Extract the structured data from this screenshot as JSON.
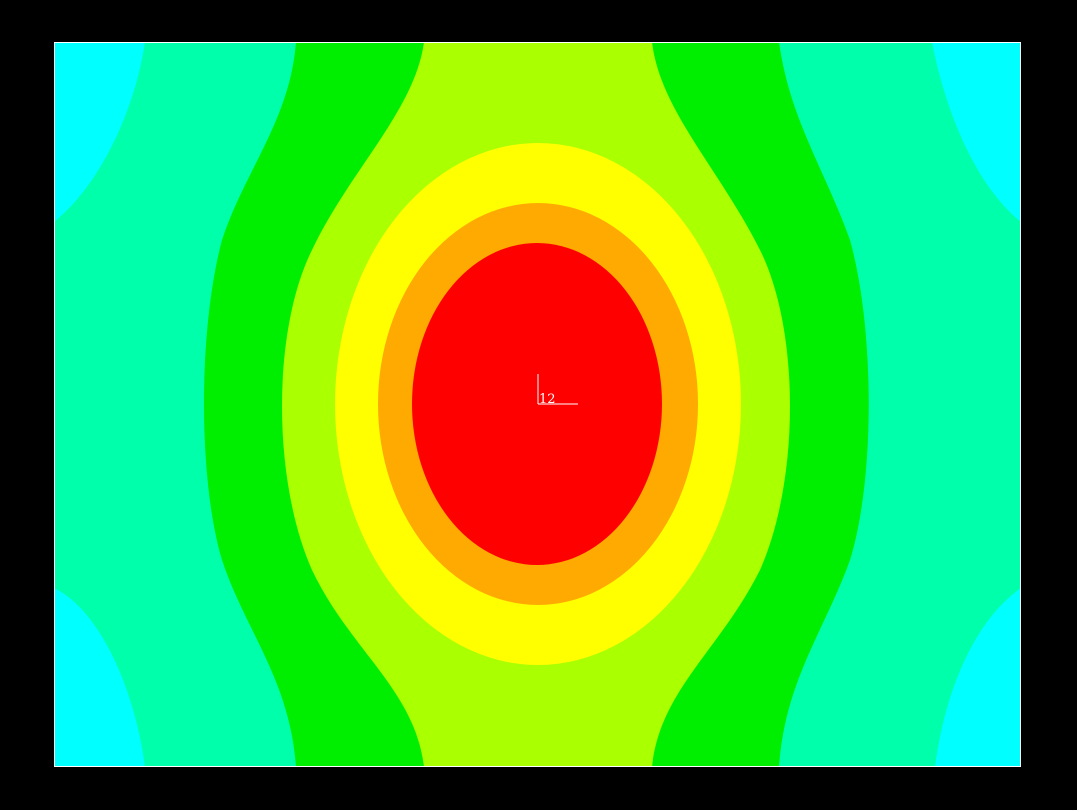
{
  "colors": {
    "background": "#000000",
    "frame": "#ffffff",
    "triad": "#ffffff",
    "bands": [
      "#00ffff",
      "#00ffaa",
      "#00ee00",
      "#aaff00",
      "#ffff00",
      "#ffaa00",
      "#ff0000"
    ]
  },
  "triad": {
    "label": "12"
  }
}
